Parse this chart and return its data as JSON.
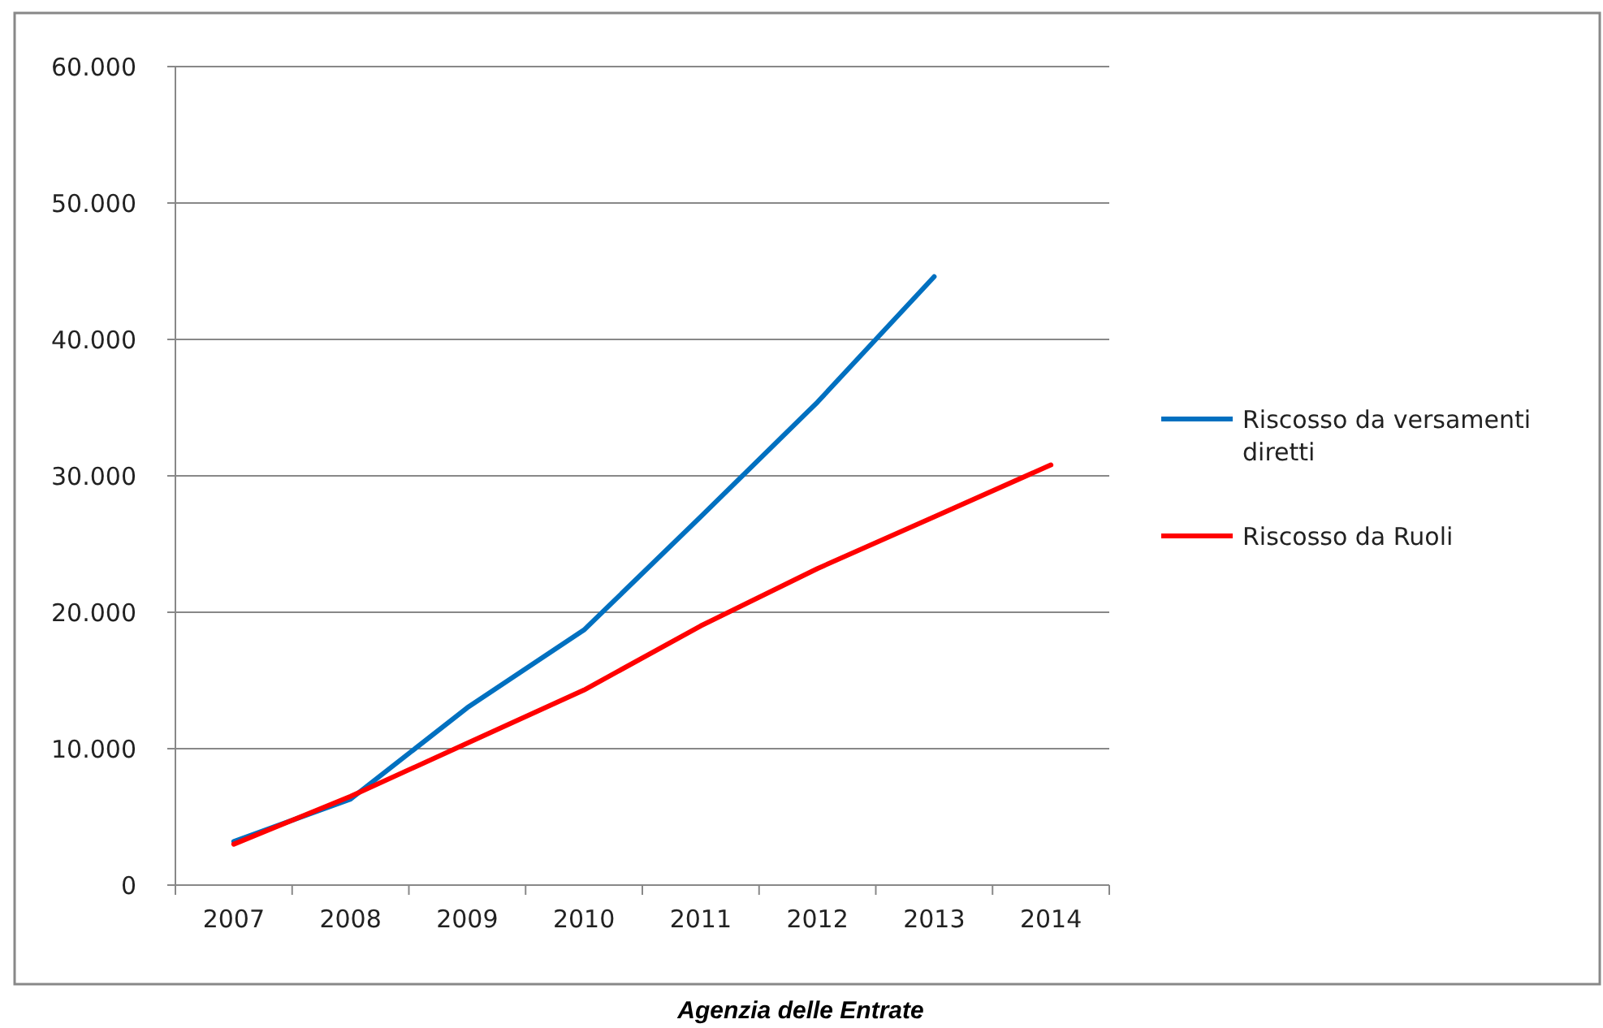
{
  "chart_data": {
    "type": "line",
    "categories": [
      "2007",
      "2008",
      "2009",
      "2010",
      "2011",
      "2012",
      "2013",
      "2014"
    ],
    "series": [
      {
        "name": "Riscosso da versamenti diretti",
        "color": "#0070c0",
        "values": [
          3200,
          6300,
          13000,
          18700,
          27000,
          35400,
          44600,
          null
        ]
      },
      {
        "name": "Riscosso da Ruoli",
        "color": "#ff0000",
        "values": [
          3000,
          6500,
          10400,
          14300,
          19000,
          23200,
          27000,
          30800
        ]
      }
    ],
    "ylim": [
      0,
      60000
    ],
    "yticks": [
      0,
      {
        "value": 10000,
        "label": "10.000"
      },
      {
        "value": 20000,
        "label": "20.000"
      },
      {
        "value": 30000,
        "label": "30.000"
      },
      {
        "value": 40000,
        "label": "40.000"
      },
      {
        "value": 50000,
        "label": "50.000"
      },
      {
        "value": 60000,
        "label": "60.000"
      }
    ],
    "grid": "y",
    "legend": "right",
    "marker": "none",
    "line_style": "solid",
    "annotations": [
      "Agenzia delle Entrate"
    ]
  }
}
